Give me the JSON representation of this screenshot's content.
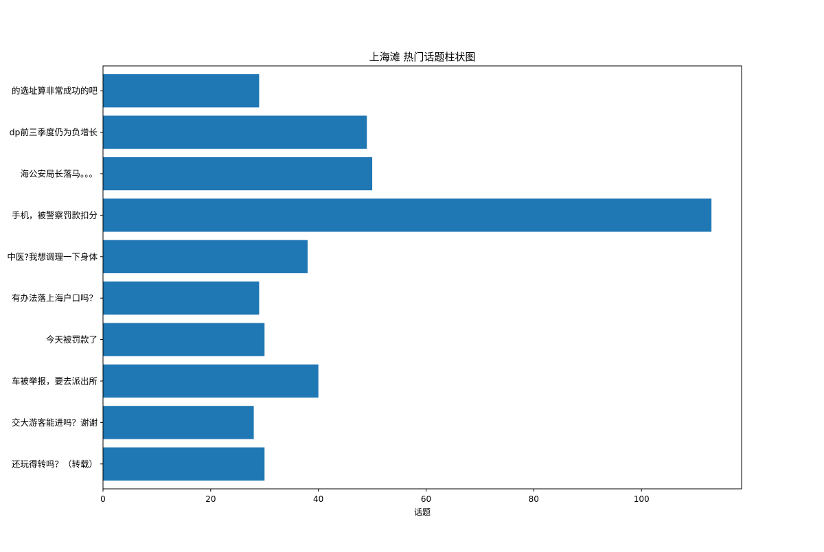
{
  "chart_data": {
    "type": "bar",
    "orientation": "horizontal",
    "title": "上海滩 热门话题柱状图",
    "xlabel": "话题",
    "ylabel": "",
    "xlim": [
      0,
      118.6
    ],
    "xticks": [
      0,
      20,
      40,
      60,
      80,
      100
    ],
    "grid": false,
    "legend": false,
    "bar_color": "#1f77b4",
    "categories": [
      "还玩得转吗？（转载）",
      "交大游客能进吗？谢谢",
      "车被举报，要去派出所",
      "今天被罚款了",
      "有办法落上海户口吗？",
      "中医?我想调理一下身体",
      "手机，被警察罚款扣分",
      "海公安局长落马。。。",
      "dp前三季度仍为负增长",
      "的选址算非常成功的吧"
    ],
    "values": [
      30,
      28,
      40,
      30,
      29,
      38,
      113,
      50,
      49,
      29
    ]
  }
}
